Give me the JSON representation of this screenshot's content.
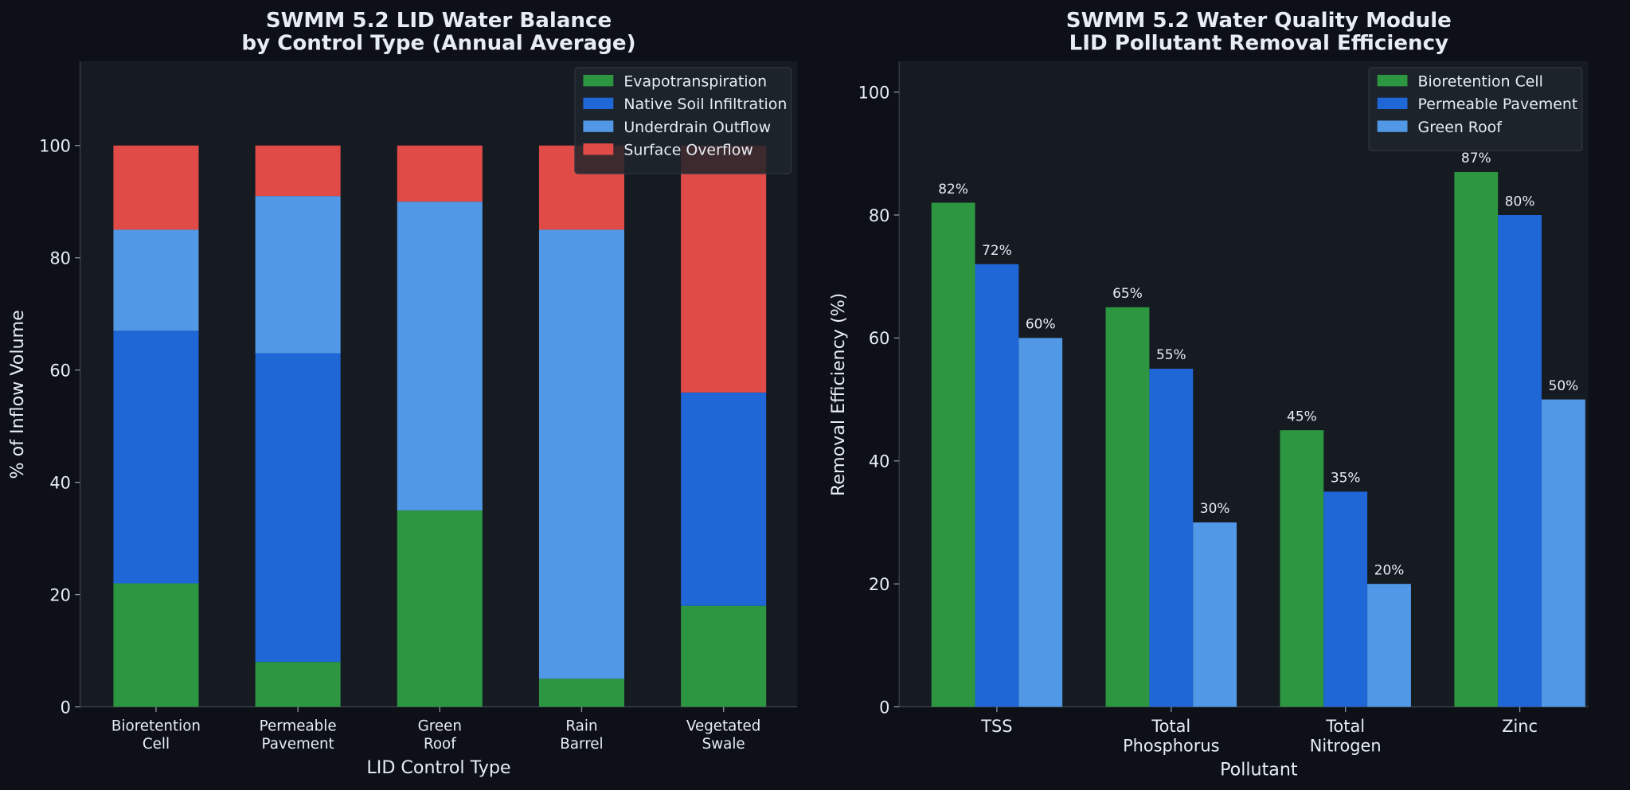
{
  "chart_data": [
    {
      "type": "stacked_bar",
      "title": "SWMM 5.2 LID Water Balance\nby Control Type (Annual Average)",
      "x_label": "LID Control Type",
      "y_label": "% of Inflow Volume",
      "categories": [
        "Bioretention\nCell",
        "Permeable\nPavement",
        "Green\nRoof",
        "Rain\nBarrel",
        "Vegetated\nSwale"
      ],
      "series": [
        {
          "name": "Evapotranspiration",
          "color": "#2d9640",
          "values": [
            22,
            8,
            35,
            5,
            18
          ]
        },
        {
          "name": "Native Soil Infiltration",
          "color": "#1f66d6",
          "values": [
            45,
            55,
            0,
            0,
            38
          ]
        },
        {
          "name": "Underdrain Outflow",
          "color": "#5199e6",
          "values": [
            18,
            28,
            55,
            80,
            0
          ]
        },
        {
          "name": "Surface Overflow",
          "color": "#e04b47",
          "values": [
            15,
            9,
            10,
            15,
            44
          ]
        }
      ],
      "ylim": [
        0,
        115
      ],
      "yticks": [
        0,
        20,
        40,
        60,
        80,
        100
      ],
      "legend": "upper right"
    },
    {
      "type": "grouped_bar",
      "title": "SWMM 5.2 Water Quality Module\nLID Pollutant Removal Efficiency",
      "x_label": "Pollutant",
      "y_label": "Removal Efficiency (%)",
      "categories": [
        "TSS",
        "Total\nPhosphorus",
        "Total\nNitrogen",
        "Zinc"
      ],
      "series": [
        {
          "name": "Bioretention Cell",
          "color": "#2d9640",
          "values": [
            82,
            65,
            45,
            87
          ],
          "value_labels": [
            "82%",
            "65%",
            "45%",
            "87%"
          ]
        },
        {
          "name": "Permeable Pavement",
          "color": "#1f66d6",
          "values": [
            72,
            55,
            35,
            80
          ],
          "value_labels": [
            "72%",
            "55%",
            "35%",
            "80%"
          ]
        },
        {
          "name": "Green Roof",
          "color": "#5199e6",
          "values": [
            60,
            30,
            20,
            50
          ],
          "value_labels": [
            "60%",
            "30%",
            "20%",
            "50%"
          ]
        }
      ],
      "ylim": [
        0,
        105
      ],
      "yticks": [
        0,
        20,
        40,
        60,
        80,
        100
      ],
      "legend": "upper right"
    }
  ]
}
